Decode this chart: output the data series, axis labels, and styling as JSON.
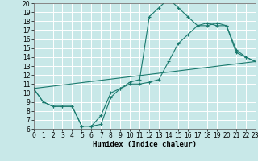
{
  "xlabel": "Humidex (Indice chaleur)",
  "bg_color": "#c8e8e8",
  "grid_color": "#ffffff",
  "line_color": "#1a7a6e",
  "xmin": 0,
  "xmax": 23,
  "ymin": 6,
  "ymax": 20,
  "line1_x": [
    0,
    1,
    2,
    3,
    4,
    5,
    6,
    7,
    8,
    9,
    10,
    11,
    12,
    13,
    14,
    15,
    16,
    17,
    18,
    19,
    20,
    21,
    22,
    23
  ],
  "line1_y": [
    10.5,
    9.0,
    8.5,
    8.5,
    8.5,
    6.3,
    6.3,
    6.5,
    9.5,
    10.5,
    11.2,
    11.5,
    18.5,
    19.5,
    20.5,
    19.5,
    18.5,
    17.5,
    17.5,
    17.8,
    17.5,
    14.8,
    14.0,
    13.5
  ],
  "line2_x": [
    0,
    1,
    2,
    3,
    4,
    5,
    6,
    7,
    8,
    9,
    10,
    11,
    12,
    13,
    14,
    15,
    16,
    17,
    18,
    19,
    20,
    21,
    22,
    23
  ],
  "line2_y": [
    10.5,
    9.0,
    8.5,
    8.5,
    8.5,
    6.3,
    6.3,
    7.5,
    10.0,
    10.5,
    11.0,
    11.0,
    11.2,
    11.5,
    13.5,
    15.5,
    16.5,
    17.5,
    17.8,
    17.5,
    17.5,
    14.5,
    14.0,
    13.5
  ],
  "line3_x": [
    0,
    23
  ],
  "line3_y": [
    10.5,
    13.5
  ],
  "tick_fontsize": 5.5,
  "label_fontsize": 6.5
}
